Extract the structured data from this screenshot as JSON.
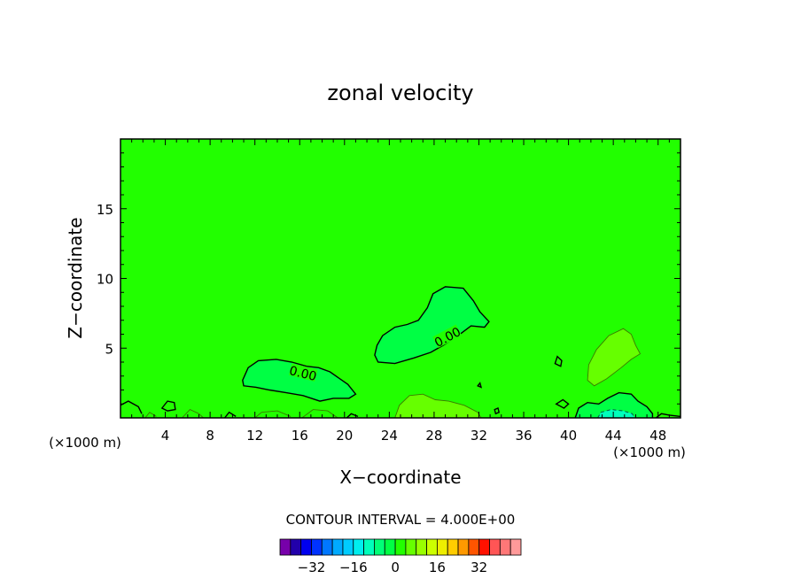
{
  "chart_data": {
    "type": "heatmap",
    "title": "zonal velocity",
    "xlabel": "X−coordinate",
    "ylabel": "Z−coordinate",
    "x_unit_left": "(×1000 m)",
    "x_unit_right": "(×1000 m)",
    "xlim": [
      0,
      50
    ],
    "ylim": [
      0,
      20
    ],
    "x_ticks": [
      4,
      8,
      12,
      16,
      20,
      24,
      28,
      32,
      36,
      40,
      44,
      48
    ],
    "y_ticks": [
      5,
      10,
      15
    ],
    "background_color": "#22ff00",
    "contour_label": "0.00",
    "contour_interval_text": "CONTOUR INTERVAL = 4.000E+00",
    "colorbar": {
      "colors": [
        "#7700aa",
        "#2200aa",
        "#0000ee",
        "#0033ff",
        "#0077ff",
        "#00aaff",
        "#00ccff",
        "#00eeee",
        "#00ffbb",
        "#00ff77",
        "#00ff44",
        "#22ff00",
        "#66ff00",
        "#99ff00",
        "#ccff00",
        "#eeee00",
        "#ffcc00",
        "#ff9900",
        "#ff5500",
        "#ff1100",
        "#ff5555",
        "#ff7777",
        "#ff9999"
      ],
      "tick_labels": [
        "−32",
        "−16",
        "0",
        "16",
        "32"
      ],
      "tick_values": [
        -32,
        -16,
        0,
        16,
        32
      ]
    },
    "regions": [
      {
        "name": "upper-core",
        "color": "#00ff44",
        "points": [
          [
            22.9,
            5.2
          ],
          [
            23.4,
            5.9
          ],
          [
            24.5,
            6.5
          ],
          [
            25.6,
            6.7
          ],
          [
            26.6,
            7.0
          ],
          [
            27.4,
            7.9
          ],
          [
            27.9,
            8.9
          ],
          [
            29.0,
            9.4
          ],
          [
            30.6,
            9.3
          ],
          [
            31.5,
            8.4
          ],
          [
            32.1,
            7.6
          ],
          [
            32.9,
            6.9
          ],
          [
            32.5,
            6.5
          ],
          [
            31.3,
            6.6
          ],
          [
            30.3,
            6.0
          ],
          [
            28.8,
            5.2
          ],
          [
            27.7,
            4.7
          ],
          [
            26.2,
            4.3
          ],
          [
            24.5,
            3.9
          ],
          [
            23.0,
            4.0
          ],
          [
            22.7,
            4.5
          ]
        ]
      },
      {
        "name": "lower-core",
        "color": "#00ff44",
        "points": [
          [
            10.9,
            2.7
          ],
          [
            11.4,
            3.6
          ],
          [
            12.3,
            4.1
          ],
          [
            13.9,
            4.2
          ],
          [
            15.3,
            4.0
          ],
          [
            16.6,
            3.7
          ],
          [
            17.7,
            3.6
          ],
          [
            18.7,
            3.3
          ],
          [
            20.3,
            2.4
          ],
          [
            21.0,
            1.7
          ],
          [
            20.4,
            1.4
          ],
          [
            19.0,
            1.4
          ],
          [
            17.8,
            1.2
          ],
          [
            16.3,
            1.6
          ],
          [
            14.8,
            1.8
          ],
          [
            13.3,
            2.0
          ],
          [
            12.1,
            2.2
          ],
          [
            11.0,
            2.3
          ]
        ]
      },
      {
        "name": "east-positive",
        "color": "#66ff00",
        "points": [
          [
            41.7,
            2.7
          ],
          [
            41.8,
            3.8
          ],
          [
            42.5,
            4.9
          ],
          [
            43.6,
            5.9
          ],
          [
            44.9,
            6.4
          ],
          [
            45.6,
            6.0
          ],
          [
            46.0,
            5.2
          ],
          [
            46.4,
            4.6
          ],
          [
            45.6,
            4.2
          ],
          [
            44.7,
            3.6
          ],
          [
            43.4,
            2.8
          ],
          [
            42.3,
            2.3
          ]
        ]
      },
      {
        "name": "east-surface",
        "color": "#00ff44",
        "points": [
          [
            40.6,
            0.0
          ],
          [
            40.9,
            0.7
          ],
          [
            41.7,
            1.1
          ],
          [
            42.7,
            1.0
          ],
          [
            43.5,
            1.4
          ],
          [
            44.5,
            1.8
          ],
          [
            45.6,
            1.7
          ],
          [
            46.2,
            1.2
          ],
          [
            47.0,
            0.8
          ],
          [
            47.5,
            0.3
          ],
          [
            47.5,
            0.0
          ]
        ]
      },
      {
        "name": "east-negative",
        "color": "#00ffbb",
        "points": [
          [
            42.6,
            0.0
          ],
          [
            42.9,
            0.4
          ],
          [
            43.8,
            0.6
          ],
          [
            44.9,
            0.5
          ],
          [
            45.7,
            0.3
          ],
          [
            45.9,
            0.0
          ]
        ]
      },
      {
        "name": "surface-band",
        "color": "#66ff00",
        "points": [
          [
            24.5,
            0.0
          ],
          [
            24.9,
            0.9
          ],
          [
            25.8,
            1.6
          ],
          [
            27.0,
            1.7
          ],
          [
            28.1,
            1.3
          ],
          [
            29.3,
            1.2
          ],
          [
            30.7,
            0.9
          ],
          [
            31.9,
            0.4
          ],
          [
            32.2,
            0.0
          ]
        ]
      }
    ],
    "contours": [
      {
        "closed": true,
        "points": [
          [
            22.9,
            5.2
          ],
          [
            23.4,
            5.9
          ],
          [
            24.5,
            6.5
          ],
          [
            25.6,
            6.7
          ],
          [
            26.6,
            7.0
          ],
          [
            27.4,
            7.9
          ],
          [
            27.9,
            8.9
          ],
          [
            29.0,
            9.4
          ],
          [
            30.6,
            9.3
          ],
          [
            31.5,
            8.4
          ],
          [
            32.1,
            7.6
          ],
          [
            32.9,
            6.9
          ],
          [
            32.5,
            6.5
          ],
          [
            31.3,
            6.6
          ],
          [
            30.3,
            6.0
          ],
          [
            28.8,
            5.2
          ],
          [
            27.7,
            4.7
          ],
          [
            26.2,
            4.3
          ],
          [
            24.5,
            3.9
          ],
          [
            23.0,
            4.0
          ],
          [
            22.7,
            4.5
          ]
        ]
      },
      {
        "closed": true,
        "points": [
          [
            10.9,
            2.7
          ],
          [
            11.4,
            3.6
          ],
          [
            12.3,
            4.1
          ],
          [
            13.9,
            4.2
          ],
          [
            15.3,
            4.0
          ],
          [
            16.6,
            3.7
          ],
          [
            17.7,
            3.6
          ],
          [
            18.7,
            3.3
          ],
          [
            20.3,
            2.4
          ],
          [
            21.0,
            1.7
          ],
          [
            20.4,
            1.4
          ],
          [
            19.0,
            1.4
          ],
          [
            17.8,
            1.2
          ],
          [
            16.3,
            1.6
          ],
          [
            14.8,
            1.8
          ],
          [
            13.3,
            2.0
          ],
          [
            12.1,
            2.2
          ],
          [
            11.0,
            2.3
          ]
        ]
      },
      {
        "closed": false,
        "points": [
          [
            40.6,
            0.0
          ],
          [
            40.9,
            0.7
          ],
          [
            41.7,
            1.1
          ],
          [
            42.7,
            1.0
          ],
          [
            43.5,
            1.4
          ],
          [
            44.5,
            1.8
          ],
          [
            45.6,
            1.7
          ],
          [
            46.2,
            1.2
          ],
          [
            47.0,
            0.8
          ],
          [
            47.5,
            0.3
          ],
          [
            47.5,
            0.0
          ]
        ]
      },
      {
        "closed": false,
        "points": [
          [
            0.0,
            0.9
          ],
          [
            0.7,
            1.2
          ],
          [
            1.6,
            0.8
          ],
          [
            1.9,
            0.3
          ]
        ]
      },
      {
        "closed": true,
        "points": [
          [
            3.7,
            0.7
          ],
          [
            4.2,
            1.2
          ],
          [
            4.8,
            1.1
          ],
          [
            4.9,
            0.6
          ],
          [
            4.2,
            0.5
          ]
        ]
      },
      {
        "closed": true,
        "points": [
          [
            38.8,
            3.9
          ],
          [
            39.0,
            4.4
          ],
          [
            39.4,
            4.1
          ],
          [
            39.3,
            3.7
          ]
        ]
      },
      {
        "closed": true,
        "points": [
          [
            38.9,
            1.0
          ],
          [
            39.5,
            1.3
          ],
          [
            40.0,
            1.0
          ],
          [
            39.6,
            0.7
          ]
        ]
      },
      {
        "closed": true,
        "points": [
          [
            33.4,
            0.6
          ],
          [
            33.7,
            0.7
          ],
          [
            33.8,
            0.4
          ],
          [
            33.5,
            0.3
          ]
        ]
      },
      {
        "closed": true,
        "points": [
          [
            31.9,
            2.3
          ],
          [
            32.1,
            2.5
          ],
          [
            32.2,
            2.2
          ]
        ]
      },
      {
        "closed": false,
        "points": [
          [
            47.8,
            0.0
          ],
          [
            48.3,
            0.3
          ],
          [
            49.0,
            0.2
          ],
          [
            50.0,
            0.1
          ]
        ]
      },
      {
        "closed": false,
        "points": [
          [
            9.3,
            0.0
          ],
          [
            9.7,
            0.4
          ],
          [
            10.3,
            0.1
          ]
        ]
      },
      {
        "closed": false,
        "points": [
          [
            20.2,
            0.0
          ],
          [
            20.6,
            0.3
          ],
          [
            21.2,
            0.1
          ]
        ]
      }
    ],
    "faint_contours": [
      {
        "closed": false,
        "points": [
          [
            24.5,
            0.0
          ],
          [
            24.9,
            0.9
          ],
          [
            25.8,
            1.6
          ],
          [
            27.0,
            1.7
          ],
          [
            28.1,
            1.3
          ],
          [
            29.3,
            1.2
          ],
          [
            30.7,
            0.9
          ],
          [
            31.9,
            0.4
          ],
          [
            32.2,
            0.0
          ]
        ]
      },
      {
        "closed": true,
        "points": [
          [
            41.7,
            2.7
          ],
          [
            41.8,
            3.8
          ],
          [
            42.5,
            4.9
          ],
          [
            43.6,
            5.9
          ],
          [
            44.9,
            6.4
          ],
          [
            45.6,
            6.0
          ],
          [
            46.0,
            5.2
          ],
          [
            46.4,
            4.6
          ],
          [
            45.6,
            4.2
          ],
          [
            44.7,
            3.6
          ],
          [
            43.4,
            2.8
          ],
          [
            42.3,
            2.3
          ]
        ]
      },
      {
        "closed": false,
        "points": [
          [
            5.5,
            0.0
          ],
          [
            6.2,
            0.6
          ],
          [
            7.0,
            0.3
          ],
          [
            7.4,
            0.0
          ]
        ]
      },
      {
        "closed": false,
        "points": [
          [
            12.0,
            0.0
          ],
          [
            12.6,
            0.4
          ],
          [
            14.0,
            0.5
          ],
          [
            15.2,
            0.1
          ]
        ]
      },
      {
        "closed": false,
        "points": [
          [
            16.2,
            0.0
          ],
          [
            17.2,
            0.6
          ],
          [
            18.5,
            0.5
          ],
          [
            19.4,
            0.0
          ]
        ]
      },
      {
        "closed": false,
        "points": [
          [
            2.2,
            0.0
          ],
          [
            2.6,
            0.4
          ],
          [
            3.2,
            0.1
          ]
        ]
      }
    ],
    "dashed_contours": [
      {
        "closed": false,
        "points": [
          [
            42.6,
            0.0
          ],
          [
            42.9,
            0.4
          ],
          [
            43.8,
            0.6
          ],
          [
            44.9,
            0.5
          ],
          [
            45.7,
            0.3
          ],
          [
            45.9,
            0.0
          ]
        ]
      }
    ],
    "contour_labels": [
      {
        "text": "0.00",
        "x": 16.3,
        "y": 3.2,
        "angle": 14
      },
      {
        "text": "0.00",
        "x": 29.2,
        "y": 5.8,
        "angle": -28
      }
    ]
  }
}
